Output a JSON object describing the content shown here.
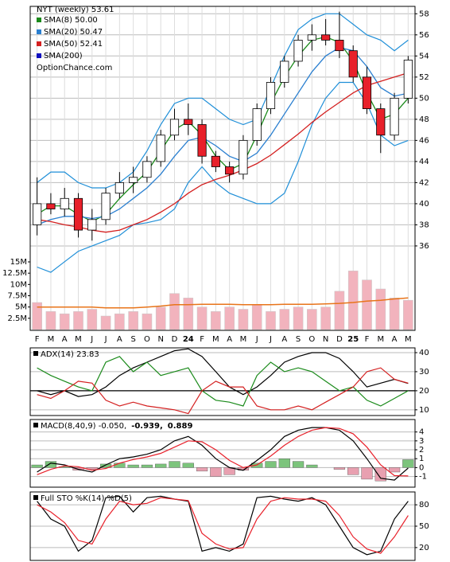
{
  "chart_data": [
    {
      "type": "candlestick",
      "title": "NYT (weekly) 53.61",
      "source": "OptionChance.com",
      "categories": [
        "F",
        "M",
        "A",
        "M",
        "J",
        "J",
        "A",
        "S",
        "O",
        "N",
        "D",
        "24",
        "F",
        "M",
        "A",
        "M",
        "J",
        "J",
        "A",
        "S",
        "O",
        "N",
        "D",
        "25",
        "F",
        "M",
        "A",
        "M"
      ],
      "open": [
        38,
        40,
        39.5,
        40.5,
        37.5,
        38.5,
        41,
        42,
        42.5,
        44,
        46.5,
        48,
        47.5,
        44.5,
        43.5,
        42.8,
        46,
        49,
        51.5,
        53.5,
        55.5,
        56,
        55.5,
        54.5,
        52,
        49,
        46.5,
        50
      ],
      "high": [
        42.5,
        41,
        41.5,
        41,
        39.5,
        41.5,
        43,
        43.5,
        44.5,
        47,
        49,
        49.5,
        48,
        45,
        44,
        46.5,
        49.5,
        52,
        54,
        56,
        57,
        57.5,
        58.2,
        55,
        53,
        49.5,
        50.5,
        54
      ],
      "low": [
        37,
        39,
        38.8,
        36.8,
        36.5,
        38,
        40.5,
        41,
        42,
        43.5,
        46,
        46.5,
        43.8,
        43,
        42,
        42.3,
        45.5,
        48.5,
        51,
        53,
        54.5,
        55,
        53.8,
        51.5,
        48.5,
        44.8,
        46,
        49.5
      ],
      "close": [
        40,
        39.5,
        40.5,
        37.5,
        38.5,
        41,
        42,
        42.5,
        44,
        46.5,
        48,
        47.5,
        44.5,
        43.5,
        42.8,
        46,
        49,
        51.5,
        53.5,
        55.5,
        56,
        55.5,
        54.5,
        52,
        49,
        46.5,
        50,
        53.61
      ],
      "up_color": "#ffffff",
      "down_color": "#e8202a",
      "ylim": [
        28,
        58.7
      ],
      "yticks": [
        36,
        38,
        40,
        42,
        44,
        46,
        48,
        50,
        52,
        54,
        56,
        58
      ],
      "grid": true,
      "series": [
        {
          "name": "SMA(8) 50.00",
          "color": "#1a8a1a",
          "values": [
            39,
            39.8,
            39.8,
            39,
            38.3,
            39,
            40.5,
            41.8,
            43,
            45,
            47,
            47.8,
            46.5,
            44.5,
            43.2,
            43.8,
            46.5,
            49.5,
            52,
            54,
            55.5,
            55.8,
            55.3,
            53.5,
            50.5,
            48,
            48.5,
            50
          ]
        },
        {
          "name": "SMA(20) 50.47",
          "color": "#2a7fd0",
          "values": [
            38,
            38.5,
            38.8,
            38.8,
            38.6,
            38.8,
            39.5,
            40.5,
            41.5,
            42.8,
            44.5,
            46,
            46.3,
            45.5,
            44.5,
            44,
            44.8,
            46.5,
            48.5,
            50.5,
            52.5,
            54,
            54.8,
            54.5,
            53,
            51,
            50.2,
            50.47
          ]
        },
        {
          "name": "SMA(50) 52.41",
          "color": "#d42020",
          "values": [
            38.5,
            38.3,
            38,
            37.8,
            37.5,
            37.3,
            37.5,
            38,
            38.5,
            39.2,
            40,
            41,
            41.8,
            42.3,
            42.7,
            43.2,
            43.8,
            44.6,
            45.6,
            46.6,
            47.7,
            48.7,
            49.6,
            50.5,
            51.2,
            51.6,
            52,
            52.41
          ]
        },
        {
          "name": "SMA(200)",
          "color": "#1010c0",
          "values": [
            null,
            null,
            null,
            null,
            null,
            null,
            null,
            null,
            null,
            null,
            null,
            null,
            null,
            null,
            null,
            null,
            null,
            null,
            null,
            null,
            null,
            null,
            null,
            null,
            null,
            null,
            null,
            null
          ]
        }
      ],
      "bands": {
        "color": "#1f8fd8",
        "upper": [
          42,
          43,
          43,
          42,
          41.5,
          41.5,
          42,
          43,
          45,
          47.5,
          49.5,
          50,
          50,
          49,
          48,
          47.5,
          48,
          51,
          54,
          56.5,
          57.5,
          58,
          58,
          57,
          56,
          55.5,
          54.5,
          55.5
        ],
        "lower": [
          34,
          33.5,
          34.5,
          35.5,
          36,
          36.5,
          37,
          38,
          38.2,
          38.5,
          39.5,
          42,
          43.5,
          42,
          41,
          40.5,
          40,
          40,
          41,
          44,
          47.5,
          50,
          51.5,
          51.5,
          49.5,
          46.5,
          45.5,
          46
        ]
      },
      "volume": {
        "color": "#f2b3bd",
        "average_color": "#e8741a",
        "values": [
          6,
          4,
          3.5,
          4,
          4.5,
          3,
          3.5,
          4,
          3.5,
          5,
          8,
          7,
          5,
          4,
          5,
          4.5,
          5.5,
          4,
          4.5,
          5,
          4.5,
          5,
          8.5,
          13,
          11,
          9,
          7,
          6.5
        ],
        "average": [
          5,
          5,
          5,
          5,
          5,
          4.8,
          4.8,
          4.8,
          5,
          5.2,
          5.5,
          5.5,
          5.6,
          5.6,
          5.6,
          5.5,
          5.5,
          5.5,
          5.6,
          5.6,
          5.6,
          5.7,
          5.8,
          6,
          6.3,
          6.5,
          6.8,
          7
        ],
        "ylim": [
          0,
          15
        ],
        "yticks": [
          {
            "value": 2.5,
            "label": "2.5M"
          },
          {
            "value": 5,
            "label": "5M"
          },
          {
            "value": 7.5,
            "label": "7.5M"
          },
          {
            "value": 10,
            "label": "10M"
          },
          {
            "value": 12.5,
            "label": "12.5M"
          },
          {
            "value": 15,
            "label": "15M"
          }
        ]
      }
    },
    {
      "type": "line",
      "title": "ADX(14) 23.83",
      "ylim": [
        7,
        42.5
      ],
      "yticks": [
        10,
        20,
        30,
        40
      ],
      "hline": 20,
      "grid": true,
      "series": [
        {
          "color": "#000000",
          "values": [
            20,
            18,
            20,
            17,
            18,
            22,
            28,
            32,
            35,
            38,
            41,
            42,
            38,
            30,
            22,
            18,
            22,
            28,
            35,
            38,
            40,
            40,
            37,
            30,
            22,
            24,
            26,
            23.83
          ]
        },
        {
          "color": "#1a8a1a",
          "values": [
            32,
            28,
            25,
            22,
            20,
            35,
            38,
            30,
            35,
            28,
            30,
            32,
            20,
            15,
            14,
            12,
            28,
            35,
            30,
            32,
            30,
            25,
            20,
            22,
            15,
            12,
            16,
            20
          ]
        },
        {
          "color": "#d42020",
          "values": [
            18,
            16,
            20,
            25,
            24,
            15,
            12,
            14,
            12,
            11,
            10,
            8,
            20,
            25,
            22,
            22,
            12,
            10,
            10,
            12,
            10,
            14,
            18,
            22,
            30,
            32,
            26,
            24
          ]
        }
      ]
    },
    {
      "type": "macd",
      "title": "MACD(8,40,9) -0.050,",
      "signal_label": "-0.939,",
      "histogram_label": "0.889",
      "ylim": [
        -2.2,
        5.4
      ],
      "yticks": [
        -1,
        0,
        1,
        2,
        3,
        4
      ],
      "grid": true,
      "series": [
        {
          "color": "#000000",
          "values": [
            -0.5,
            0.5,
            0.3,
            -0.2,
            -0.5,
            0.3,
            1,
            1.2,
            1.5,
            2,
            3,
            3.5,
            2.5,
            1,
            0,
            -0.3,
            0.8,
            2,
            3.5,
            4.2,
            4.5,
            4.5,
            4.2,
            3,
            1,
            -1.2,
            -1.4,
            -0.05
          ]
        },
        {
          "color": "#e8202a",
          "values": [
            -0.8,
            -0.2,
            0.2,
            0.1,
            -0.3,
            -0.1,
            0.5,
            0.9,
            1.2,
            1.6,
            2.3,
            3,
            2.9,
            2,
            0.8,
            0,
            0.3,
            1.3,
            2.5,
            3.5,
            4.2,
            4.5,
            4.4,
            3.8,
            2.3,
            0.3,
            -0.9,
            -0.939
          ]
        }
      ],
      "histogram": {
        "color_up": "#7cc47c",
        "color_down": "#e8a0b0",
        "label_color": "#2a5fd0",
        "values": [
          0.3,
          0.7,
          0.1,
          -0.3,
          -0.2,
          0.4,
          0.5,
          0.3,
          0.3,
          0.4,
          0.7,
          0.5,
          -0.4,
          -1,
          -0.8,
          -0.3,
          0.5,
          0.7,
          1,
          0.7,
          0.3,
          0,
          -0.2,
          -0.8,
          -1.3,
          -1.5,
          -0.5,
          0.889
        ]
      }
    },
    {
      "type": "line",
      "title": "Full STO %K(14) %D(5)",
      "ylim": [
        2,
        98
      ],
      "yticks": [
        20,
        50,
        80
      ],
      "grid": true,
      "series": [
        {
          "color": "#000000",
          "values": [
            85,
            60,
            50,
            15,
            30,
            90,
            92,
            70,
            90,
            92,
            88,
            85,
            15,
            20,
            15,
            25,
            90,
            92,
            88,
            85,
            90,
            80,
            50,
            20,
            10,
            15,
            60,
            85
          ]
        },
        {
          "color": "#e8202a",
          "values": [
            80,
            70,
            55,
            30,
            25,
            60,
            85,
            80,
            82,
            90,
            88,
            86,
            40,
            25,
            18,
            20,
            60,
            85,
            90,
            88,
            88,
            85,
            65,
            35,
            18,
            12,
            35,
            65
          ]
        }
      ]
    }
  ]
}
